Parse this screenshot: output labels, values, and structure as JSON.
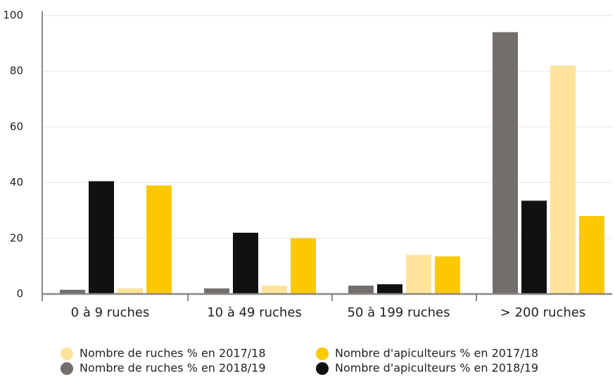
{
  "chart_data": {
    "type": "bar",
    "categories": [
      "0 à 9 ruches",
      "10 à 49 ruches",
      "50 à 199 ruches",
      "> 200 ruches"
    ],
    "series": [
      {
        "name": "Nombre de ruches % en 2018/19",
        "color": "#736e6b",
        "values": [
          1.5,
          2,
          3,
          94
        ]
      },
      {
        "name": "Nombre d'apiculteurs % en 2018/19",
        "color": "#111111",
        "values": [
          40.5,
          22,
          3.5,
          33.5
        ]
      },
      {
        "name": "Nombre de ruches % en 2017/18",
        "color": "#fde49a",
        "values": [
          2,
          3,
          14,
          82
        ]
      },
      {
        "name": "Nombre d'apiculteurs % en 2017/18",
        "color": "#fcc800",
        "values": [
          39,
          20,
          13.5,
          28
        ]
      }
    ],
    "ylim": [
      0,
      100
    ],
    "yticks": [
      0,
      20,
      40,
      60,
      80,
      100
    ],
    "grid": true
  }
}
